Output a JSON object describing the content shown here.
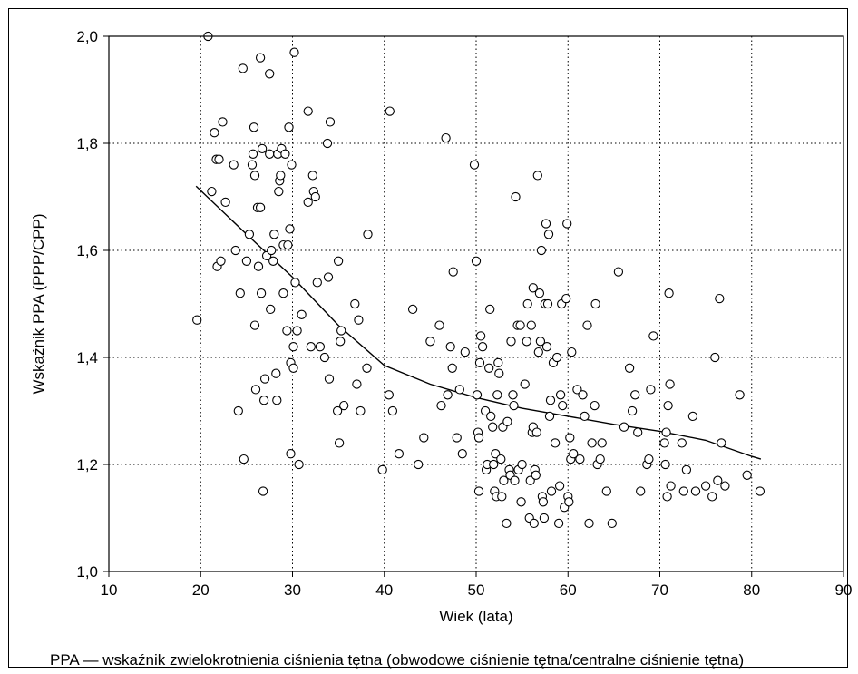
{
  "caption": "PPA — wskaźnik zwielokrotnienia ciśnienia tętna (obwodowe ciśnienie tętna/centralne ciśnienie tętna)",
  "chart_data": {
    "type": "scatter",
    "title": "",
    "xlabel": "Wiek (lata)",
    "ylabel": "Wskaźnik PPA (PPP/CPP)",
    "xlim": [
      10,
      90
    ],
    "ylim": [
      1.0,
      2.0
    ],
    "xticks": [
      10,
      20,
      30,
      40,
      50,
      60,
      70,
      80,
      90
    ],
    "xtick_labels": [
      "10",
      "20",
      "30",
      "40",
      "50",
      "60",
      "70",
      "80",
      "90"
    ],
    "yticks": [
      1.0,
      1.2,
      1.4,
      1.6,
      1.8,
      2.0
    ],
    "ytick_labels": [
      "1,0",
      "1,2",
      "1,4",
      "1,6",
      "1,8",
      "2,0"
    ],
    "grid": true,
    "marker": "open-circle",
    "points": [
      [
        19.6,
        1.47
      ],
      [
        20.8,
        2.0
      ],
      [
        21.2,
        1.71
      ],
      [
        21.5,
        1.82
      ],
      [
        21.7,
        1.77
      ],
      [
        21.8,
        1.57
      ],
      [
        22.0,
        1.77
      ],
      [
        22.2,
        1.58
      ],
      [
        22.4,
        1.84
      ],
      [
        22.7,
        1.69
      ],
      [
        23.6,
        1.76
      ],
      [
        23.8,
        1.6
      ],
      [
        24.1,
        1.3
      ],
      [
        24.3,
        1.52
      ],
      [
        24.6,
        1.94
      ],
      [
        24.7,
        1.21
      ],
      [
        25.0,
        1.58
      ],
      [
        25.3,
        1.63
      ],
      [
        25.6,
        1.76
      ],
      [
        25.7,
        1.78
      ],
      [
        25.8,
        1.83
      ],
      [
        25.9,
        1.74
      ],
      [
        25.9,
        1.46
      ],
      [
        26.0,
        1.34
      ],
      [
        26.2,
        1.68
      ],
      [
        26.3,
        1.57
      ],
      [
        26.5,
        1.96
      ],
      [
        26.5,
        1.68
      ],
      [
        26.6,
        1.52
      ],
      [
        26.7,
        1.79
      ],
      [
        26.8,
        1.15
      ],
      [
        26.9,
        1.32
      ],
      [
        27.0,
        1.36
      ],
      [
        27.2,
        1.59
      ],
      [
        27.5,
        1.78
      ],
      [
        27.5,
        1.93
      ],
      [
        27.6,
        1.49
      ],
      [
        27.7,
        1.6
      ],
      [
        27.9,
        1.58
      ],
      [
        28.0,
        1.63
      ],
      [
        28.2,
        1.37
      ],
      [
        28.3,
        1.32
      ],
      [
        28.4,
        1.78
      ],
      [
        28.5,
        1.71
      ],
      [
        28.6,
        1.73
      ],
      [
        28.7,
        1.74
      ],
      [
        28.8,
        1.79
      ],
      [
        29.0,
        1.61
      ],
      [
        29.0,
        1.52
      ],
      [
        29.2,
        1.78
      ],
      [
        29.4,
        1.45
      ],
      [
        29.5,
        1.61
      ],
      [
        29.6,
        1.83
      ],
      [
        29.7,
        1.64
      ],
      [
        29.8,
        1.39
      ],
      [
        29.8,
        1.22
      ],
      [
        29.9,
        1.76
      ],
      [
        30.1,
        1.42
      ],
      [
        30.1,
        1.38
      ],
      [
        30.2,
        1.97
      ],
      [
        30.3,
        1.54
      ],
      [
        30.5,
        1.45
      ],
      [
        30.7,
        1.2
      ],
      [
        31.0,
        1.48
      ],
      [
        31.7,
        1.86
      ],
      [
        31.7,
        1.69
      ],
      [
        32.0,
        1.42
      ],
      [
        32.2,
        1.74
      ],
      [
        32.3,
        1.71
      ],
      [
        32.5,
        1.7
      ],
      [
        32.7,
        1.54
      ],
      [
        33.0,
        1.42
      ],
      [
        33.5,
        1.4
      ],
      [
        33.8,
        1.8
      ],
      [
        33.9,
        1.55
      ],
      [
        34.0,
        1.36
      ],
      [
        34.1,
        1.84
      ],
      [
        34.9,
        1.3
      ],
      [
        35.0,
        1.58
      ],
      [
        35.1,
        1.24
      ],
      [
        35.2,
        1.43
      ],
      [
        35.3,
        1.45
      ],
      [
        35.6,
        1.31
      ],
      [
        36.8,
        1.5
      ],
      [
        37.0,
        1.35
      ],
      [
        37.2,
        1.47
      ],
      [
        37.4,
        1.3
      ],
      [
        38.1,
        1.38
      ],
      [
        38.2,
        1.63
      ],
      [
        39.8,
        1.19
      ],
      [
        40.5,
        1.33
      ],
      [
        40.6,
        1.86
      ],
      [
        40.9,
        1.3
      ],
      [
        41.6,
        1.22
      ],
      [
        43.1,
        1.49
      ],
      [
        43.7,
        1.2
      ],
      [
        44.3,
        1.25
      ],
      [
        45.0,
        1.43
      ],
      [
        46.0,
        1.46
      ],
      [
        46.2,
        1.31
      ],
      [
        46.7,
        1.81
      ],
      [
        46.9,
        1.33
      ],
      [
        47.2,
        1.42
      ],
      [
        47.4,
        1.38
      ],
      [
        47.5,
        1.56
      ],
      [
        47.9,
        1.25
      ],
      [
        48.2,
        1.34
      ],
      [
        48.5,
        1.22
      ],
      [
        48.8,
        1.41
      ],
      [
        49.8,
        1.76
      ],
      [
        50.0,
        1.58
      ],
      [
        50.1,
        1.33
      ],
      [
        50.2,
        1.26
      ],
      [
        50.3,
        1.25
      ],
      [
        50.3,
        1.15
      ],
      [
        50.4,
        1.39
      ],
      [
        50.5,
        1.44
      ],
      [
        50.7,
        1.42
      ],
      [
        51.0,
        1.3
      ],
      [
        51.1,
        1.19
      ],
      [
        51.2,
        1.2
      ],
      [
        51.4,
        1.38
      ],
      [
        51.5,
        1.49
      ],
      [
        51.6,
        1.29
      ],
      [
        51.8,
        1.27
      ],
      [
        51.9,
        1.2
      ],
      [
        52.0,
        1.15
      ],
      [
        52.1,
        1.22
      ],
      [
        52.2,
        1.14
      ],
      [
        52.3,
        1.33
      ],
      [
        52.4,
        1.39
      ],
      [
        52.5,
        1.37
      ],
      [
        52.7,
        1.21
      ],
      [
        52.8,
        1.14
      ],
      [
        52.9,
        1.27
      ],
      [
        53.0,
        1.17
      ],
      [
        53.3,
        1.09
      ],
      [
        53.4,
        1.28
      ],
      [
        53.6,
        1.19
      ],
      [
        53.7,
        1.18
      ],
      [
        53.8,
        1.43
      ],
      [
        54.0,
        1.33
      ],
      [
        54.1,
        1.31
      ],
      [
        54.2,
        1.17
      ],
      [
        54.3,
        1.7
      ],
      [
        54.5,
        1.46
      ],
      [
        54.6,
        1.19
      ],
      [
        54.8,
        1.46
      ],
      [
        54.9,
        1.13
      ],
      [
        55.0,
        1.2
      ],
      [
        55.3,
        1.35
      ],
      [
        55.5,
        1.43
      ],
      [
        55.6,
        1.5
      ],
      [
        55.8,
        1.1
      ],
      [
        55.9,
        1.17
      ],
      [
        56.0,
        1.46
      ],
      [
        56.1,
        1.26
      ],
      [
        56.2,
        1.53
      ],
      [
        56.2,
        1.27
      ],
      [
        56.3,
        1.09
      ],
      [
        56.4,
        1.19
      ],
      [
        56.5,
        1.18
      ],
      [
        56.6,
        1.26
      ],
      [
        56.7,
        1.74
      ],
      [
        56.8,
        1.41
      ],
      [
        56.9,
        1.52
      ],
      [
        57.0,
        1.43
      ],
      [
        57.1,
        1.6
      ],
      [
        57.2,
        1.14
      ],
      [
        57.3,
        1.13
      ],
      [
        57.4,
        1.1
      ],
      [
        57.5,
        1.5
      ],
      [
        57.6,
        1.65
      ],
      [
        57.7,
        1.42
      ],
      [
        57.8,
        1.5
      ],
      [
        57.9,
        1.63
      ],
      [
        58.0,
        1.29
      ],
      [
        58.1,
        1.32
      ],
      [
        58.2,
        1.15
      ],
      [
        58.4,
        1.39
      ],
      [
        58.6,
        1.24
      ],
      [
        58.8,
        1.4
      ],
      [
        59.0,
        1.09
      ],
      [
        59.1,
        1.16
      ],
      [
        59.2,
        1.33
      ],
      [
        59.3,
        1.5
      ],
      [
        59.4,
        1.31
      ],
      [
        59.6,
        1.12
      ],
      [
        59.8,
        1.51
      ],
      [
        59.9,
        1.65
      ],
      [
        60.0,
        1.14
      ],
      [
        60.1,
        1.13
      ],
      [
        60.2,
        1.25
      ],
      [
        60.3,
        1.21
      ],
      [
        60.4,
        1.41
      ],
      [
        60.6,
        1.22
      ],
      [
        61.0,
        1.34
      ],
      [
        61.3,
        1.21
      ],
      [
        61.6,
        1.33
      ],
      [
        61.8,
        1.29
      ],
      [
        62.1,
        1.46
      ],
      [
        62.3,
        1.09
      ],
      [
        62.6,
        1.24
      ],
      [
        62.9,
        1.31
      ],
      [
        63.0,
        1.5
      ],
      [
        63.2,
        1.2
      ],
      [
        63.5,
        1.21
      ],
      [
        63.7,
        1.24
      ],
      [
        64.2,
        1.15
      ],
      [
        64.8,
        1.09
      ],
      [
        65.5,
        1.56
      ],
      [
        66.1,
        1.27
      ],
      [
        66.7,
        1.38
      ],
      [
        67.0,
        1.3
      ],
      [
        67.3,
        1.33
      ],
      [
        67.6,
        1.26
      ],
      [
        67.9,
        1.15
      ],
      [
        68.6,
        1.2
      ],
      [
        68.8,
        1.21
      ],
      [
        69.0,
        1.34
      ],
      [
        69.3,
        1.44
      ],
      [
        70.5,
        1.24
      ],
      [
        70.6,
        1.2
      ],
      [
        70.7,
        1.26
      ],
      [
        70.8,
        1.14
      ],
      [
        70.9,
        1.31
      ],
      [
        71.0,
        1.52
      ],
      [
        71.1,
        1.35
      ],
      [
        71.2,
        1.16
      ],
      [
        72.4,
        1.24
      ],
      [
        72.6,
        1.15
      ],
      [
        72.9,
        1.19
      ],
      [
        73.6,
        1.29
      ],
      [
        73.9,
        1.15
      ],
      [
        75.0,
        1.16
      ],
      [
        75.7,
        1.14
      ],
      [
        76.0,
        1.4
      ],
      [
        76.3,
        1.17
      ],
      [
        76.5,
        1.51
      ],
      [
        76.7,
        1.24
      ],
      [
        77.1,
        1.16
      ],
      [
        78.7,
        1.33
      ],
      [
        79.5,
        1.18
      ],
      [
        80.9,
        1.15
      ]
    ],
    "trend": [
      [
        19.5,
        1.72
      ],
      [
        25,
        1.63
      ],
      [
        30,
        1.55
      ],
      [
        35,
        1.46
      ],
      [
        40,
        1.385
      ],
      [
        45,
        1.35
      ],
      [
        50,
        1.325
      ],
      [
        55,
        1.305
      ],
      [
        60,
        1.29
      ],
      [
        65,
        1.275
      ],
      [
        70,
        1.262
      ],
      [
        75,
        1.245
      ],
      [
        80,
        1.215
      ],
      [
        81,
        1.21
      ]
    ],
    "colors": {
      "axis": "#000000",
      "grid": "#000000",
      "marker_stroke": "#000000",
      "trend": "#000000"
    }
  }
}
